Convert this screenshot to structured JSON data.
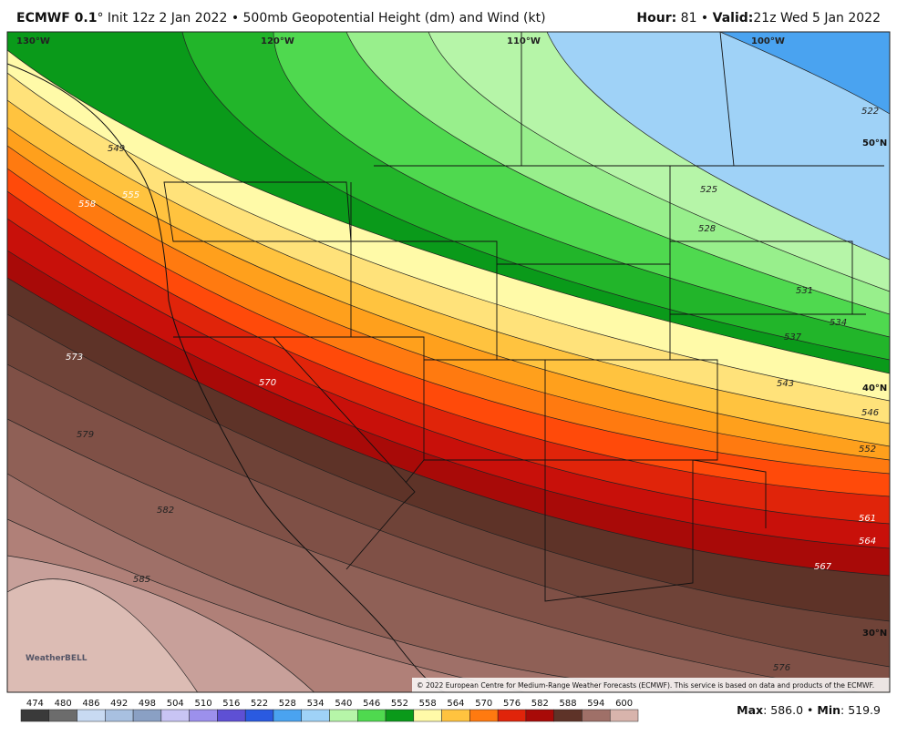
{
  "header": {
    "model": "ECMWF 0.1",
    "description": "° Init 12z 2 Jan 2022 • 500mb Geopotential Height (dm) and Wind (kt)",
    "hour_label": "Hour:",
    "hour": "81 •",
    "valid_label": "Valid:",
    "valid": "21z Wed 5 Jan 2022"
  },
  "map": {
    "longitude_labels": [
      "130°W",
      "120°W",
      "110°W",
      "100°W"
    ],
    "latitude_labels": [
      "50°N",
      "40°N",
      "30°N"
    ],
    "contour_labels": [
      "522",
      "525",
      "528",
      "531",
      "534",
      "537",
      "543",
      "546",
      "549",
      "552",
      "555",
      "558",
      "561",
      "564",
      "567",
      "570",
      "573",
      "576",
      "579",
      "582",
      "585"
    ],
    "logo": "WeatherBELL",
    "copyright": "© 2022 European Centre for Medium-Range Weather Forecasts (ECMWF). This service is based on data and products of the ECMWF."
  },
  "colorbar": {
    "labels": [
      474,
      480,
      486,
      492,
      498,
      504,
      510,
      516,
      522,
      528,
      534,
      540,
      546,
      552,
      558,
      564,
      570,
      576,
      582,
      588,
      594,
      600
    ],
    "colors": [
      "#3a3a3a",
      "#6c6c6c",
      "#c8daf2",
      "#a8c0e0",
      "#8aa0c4",
      "#c8c4f4",
      "#9c90ec",
      "#5e50d4",
      "#2a5ae0",
      "#4aa3f0",
      "#9fd2f7",
      "#b6f5a8",
      "#4fd94f",
      "#0a9a1a",
      "#fffaa8",
      "#ffc33f",
      "#ff7a10",
      "#e0240a",
      "#a80a08",
      "#5e3328",
      "#9f7068",
      "#d8b4ac"
    ]
  },
  "footer": {
    "max_label": "Max",
    "max": ": 586.0 •",
    "min_label": "Min",
    "min": ": 519.9"
  }
}
